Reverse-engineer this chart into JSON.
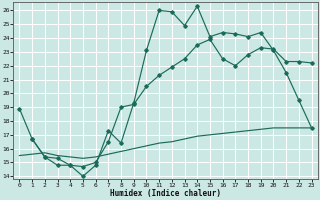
{
  "xlabel": "Humidex (Indice chaleur)",
  "bg_color": "#cce8e4",
  "line_color": "#1a6b5a",
  "grid_color": "#ffffff",
  "xlim": [
    -0.5,
    23.5
  ],
  "ylim": [
    13.8,
    26.6
  ],
  "yticks": [
    14,
    15,
    16,
    17,
    18,
    19,
    20,
    21,
    22,
    23,
    24,
    25,
    26
  ],
  "xticks": [
    0,
    1,
    2,
    3,
    4,
    5,
    6,
    7,
    8,
    9,
    10,
    11,
    12,
    13,
    14,
    15,
    16,
    17,
    18,
    19,
    20,
    21,
    22,
    23
  ],
  "line1_x": [
    0,
    1,
    2,
    3,
    4,
    5,
    6,
    7,
    8,
    9,
    10,
    11,
    12,
    13,
    14,
    15,
    16,
    17,
    18,
    19,
    20,
    21,
    22,
    23
  ],
  "line1_y": [
    18.9,
    16.7,
    15.4,
    14.8,
    14.8,
    14.0,
    14.8,
    17.3,
    16.4,
    19.3,
    23.1,
    26.0,
    25.9,
    24.9,
    26.3,
    24.1,
    24.4,
    24.3,
    24.1,
    24.4,
    23.1,
    21.5,
    19.5,
    17.5
  ],
  "line2_x": [
    1,
    2,
    3,
    4,
    5,
    6,
    7,
    8,
    9,
    10,
    11,
    12,
    13,
    14,
    15,
    16,
    17,
    18,
    19,
    20,
    21,
    22,
    23
  ],
  "line2_y": [
    16.7,
    15.4,
    15.3,
    14.8,
    14.7,
    15.0,
    16.5,
    19.0,
    19.2,
    20.5,
    21.3,
    21.9,
    22.5,
    23.5,
    23.9,
    22.5,
    22.0,
    22.8,
    23.3,
    23.2,
    22.3,
    22.3,
    22.2
  ],
  "line3_x": [
    0,
    1,
    2,
    3,
    4,
    5,
    6,
    7,
    8,
    9,
    10,
    11,
    12,
    13,
    14,
    15,
    16,
    17,
    18,
    19,
    20,
    21,
    22,
    23
  ],
  "line3_y": [
    15.5,
    15.6,
    15.7,
    15.5,
    15.4,
    15.3,
    15.4,
    15.6,
    15.8,
    16.0,
    16.2,
    16.4,
    16.5,
    16.7,
    16.9,
    17.0,
    17.1,
    17.2,
    17.3,
    17.4,
    17.5,
    17.5,
    17.5,
    17.5
  ]
}
